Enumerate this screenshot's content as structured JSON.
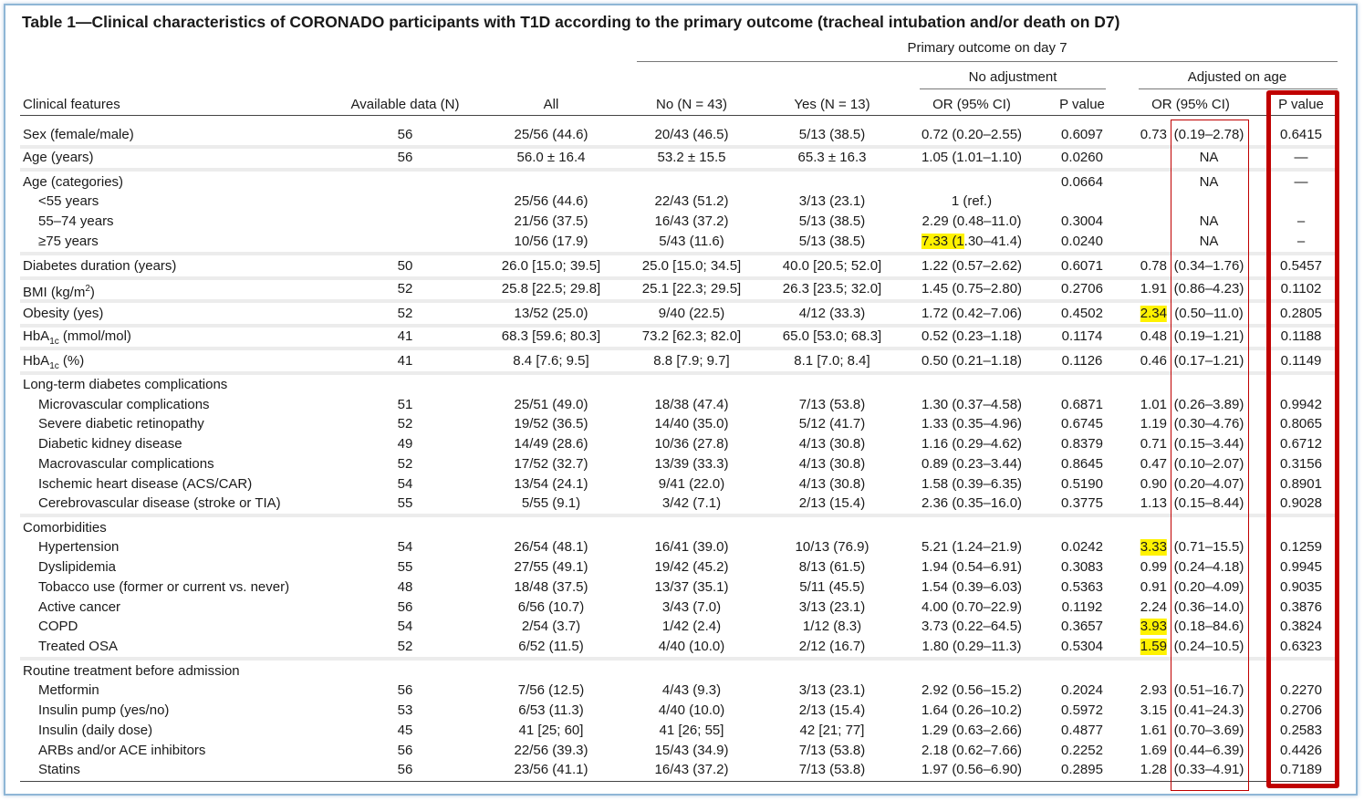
{
  "title": "Table 1—Clinical characteristics of CORONADO participants with T1D according to the primary outcome (tracheal intubation and/or death on D7)",
  "headers": {
    "primary_outcome": "Primary outcome on day 7",
    "no_adjustment": "No adjustment",
    "adjusted_on_age": "Adjusted on age",
    "clinical_features": "Clinical features",
    "available_data": "Available data (N)",
    "all": "All",
    "no": "No (N = 43)",
    "yes": "Yes (N = 13)",
    "or_ci_1": "OR (95% CI)",
    "p_value_1": "P value",
    "or_ci_2": "OR (95% CI)",
    "p_value_2": "P value"
  },
  "highlight_color": "#fff200",
  "annotation_color": "#c00000",
  "rows": [
    {
      "label": "Sex (female/male)",
      "indent": false,
      "n": "56",
      "all": "25/56 (44.6)",
      "no": "20/43 (46.5)",
      "yes": "5/13 (38.5)",
      "or1": "0.72 (0.20–2.55)",
      "p1": "0.6097",
      "or2a": "0.73",
      "or2b": "(0.19–2.78)",
      "p2": "0.6415"
    },
    {
      "label": "Age (years)",
      "indent": false,
      "n": "56",
      "all": "56.0 ± 16.4",
      "no": "53.2 ± 15.5",
      "yes": "65.3 ± 16.3",
      "or1": "1.05 (1.01–1.10)",
      "p1": "0.0260",
      "or2a": "",
      "or2b": "NA",
      "p2": "—"
    },
    {
      "label": "Age (categories)",
      "indent": false,
      "n": "",
      "all": "",
      "no": "",
      "yes": "",
      "or1": "",
      "p1": "0.0664",
      "or2a": "",
      "or2b": "NA",
      "p2": "—"
    },
    {
      "label": "<55 years",
      "indent": true,
      "n": "",
      "all": "25/56 (44.6)",
      "no": "22/43 (51.2)",
      "yes": "3/13 (23.1)",
      "or1": "1 (ref.)",
      "p1": "",
      "or2a": "",
      "or2b": "",
      "p2": ""
    },
    {
      "label": "55–74 years",
      "indent": true,
      "n": "",
      "all": "21/56 (37.5)",
      "no": "16/43 (37.2)",
      "yes": "5/13 (38.5)",
      "or1": "2.29 (0.48–11.0)",
      "p1": "0.3004",
      "or2a": "",
      "or2b": "NA",
      "p2": "–"
    },
    {
      "label": "≥75 years",
      "indent": true,
      "n": "",
      "all": "10/56 (17.9)",
      "no": "5/43 (11.6)",
      "yes": "5/13 (38.5)",
      "or1": "7.33 (1.30–41.4)",
      "p1": "0.0240",
      "or2a": "",
      "or2b": "NA",
      "p2": "–"
    },
    {
      "label": "Diabetes duration (years)",
      "indent": false,
      "n": "50",
      "all": "26.0 [15.0; 39.5]",
      "no": "25.0 [15.0; 34.5]",
      "yes": "40.0 [20.5; 52.0]",
      "or1": "1.22 (0.57–2.62)",
      "p1": "0.6071",
      "or2a": "0.78",
      "or2b": "(0.34–1.76)",
      "p2": "0.5457"
    },
    {
      "label": "BMI (kg/m²)",
      "indent": false,
      "n": "52",
      "all": "25.8 [22.5; 29.8]",
      "no": "25.1 [22.3; 29.5]",
      "yes": "26.3 [23.5; 32.0]",
      "or1": "1.45 (0.75–2.80)",
      "p1": "0.2706",
      "or2a": "1.91",
      "or2b": "(0.86–4.23)",
      "p2": "0.1102"
    },
    {
      "label": "Obesity (yes)",
      "indent": false,
      "n": "52",
      "all": "13/52 (25.0)",
      "no": "9/40 (22.5)",
      "yes": "4/12 (33.3)",
      "or1": "1.72 (0.42–7.06)",
      "p1": "0.4502",
      "or2a": "2.34",
      "or2b": "(0.50–11.0)",
      "p2": "0.2805"
    },
    {
      "label": "HbA1c (mmol/mol)",
      "indent": false,
      "n": "41",
      "all": "68.3 [59.6; 80.3]",
      "no": "73.2 [62.3; 82.0]",
      "yes": "65.0 [53.0; 68.3]",
      "or1": "0.52 (0.23–1.18)",
      "p1": "0.1174",
      "or2a": "0.48",
      "or2b": "(0.19–1.21)",
      "p2": "0.1188"
    },
    {
      "label": "HbA1c (%)",
      "indent": false,
      "n": "41",
      "all": "8.4 [7.6; 9.5]",
      "no": "8.8 [7.9; 9.7]",
      "yes": "8.1 [7.0; 8.4]",
      "or1": "0.50 (0.21–1.18)",
      "p1": "0.1126",
      "or2a": "0.46",
      "or2b": "(0.17–1.21)",
      "p2": "0.1149"
    },
    {
      "label": "Long-term diabetes complications",
      "indent": false,
      "n": "",
      "all": "",
      "no": "",
      "yes": "",
      "or1": "",
      "p1": "",
      "or2a": "",
      "or2b": "",
      "p2": ""
    },
    {
      "label": "Microvascular complications",
      "indent": true,
      "n": "51",
      "all": "25/51 (49.0)",
      "no": "18/38 (47.4)",
      "yes": "7/13 (53.8)",
      "or1": "1.30 (0.37–4.58)",
      "p1": "0.6871",
      "or2a": "1.01",
      "or2b": "(0.26–3.89)",
      "p2": "0.9942"
    },
    {
      "label": "Severe diabetic retinopathy",
      "indent": true,
      "n": "52",
      "all": "19/52 (36.5)",
      "no": "14/40 (35.0)",
      "yes": "5/12 (41.7)",
      "or1": "1.33 (0.35–4.96)",
      "p1": "0.6745",
      "or2a": "1.19",
      "or2b": "(0.30–4.76)",
      "p2": "0.8065"
    },
    {
      "label": "Diabetic kidney disease",
      "indent": true,
      "n": "49",
      "all": "14/49 (28.6)",
      "no": "10/36 (27.8)",
      "yes": "4/13 (30.8)",
      "or1": "1.16 (0.29–4.62)",
      "p1": "0.8379",
      "or2a": "0.71",
      "or2b": "(0.15–3.44)",
      "p2": "0.6712"
    },
    {
      "label": "Macrovascular complications",
      "indent": true,
      "n": "52",
      "all": "17/52 (32.7)",
      "no": "13/39 (33.3)",
      "yes": "4/13 (30.8)",
      "or1": "0.89 (0.23–3.44)",
      "p1": "0.8645",
      "or2a": "0.47",
      "or2b": "(0.10–2.07)",
      "p2": "0.3156"
    },
    {
      "label": "Ischemic heart disease (ACS/CAR)",
      "indent": true,
      "n": "54",
      "all": "13/54 (24.1)",
      "no": "9/41 (22.0)",
      "yes": "4/13 (30.8)",
      "or1": "1.58 (0.39–6.35)",
      "p1": "0.5190",
      "or2a": "0.90",
      "or2b": "(0.20–4.07)",
      "p2": "0.8901"
    },
    {
      "label": "Cerebrovascular disease (stroke or TIA)",
      "indent": true,
      "n": "55",
      "all": "5/55 (9.1)",
      "no": "3/42 (7.1)",
      "yes": "2/13 (15.4)",
      "or1": "2.36 (0.35–16.0)",
      "p1": "0.3775",
      "or2a": "1.13",
      "or2b": "(0.15–8.44)",
      "p2": "0.9028"
    },
    {
      "label": "Comorbidities",
      "indent": false,
      "n": "",
      "all": "",
      "no": "",
      "yes": "",
      "or1": "",
      "p1": "",
      "or2a": "",
      "or2b": "",
      "p2": ""
    },
    {
      "label": "Hypertension",
      "indent": true,
      "n": "54",
      "all": "26/54 (48.1)",
      "no": "16/41 (39.0)",
      "yes": "10/13 (76.9)",
      "or1": "5.21 (1.24–21.9)",
      "p1": "0.0242",
      "or2a": "3.33",
      "or2b": "(0.71–15.5)",
      "p2": "0.1259"
    },
    {
      "label": "Dyslipidemia",
      "indent": true,
      "n": "55",
      "all": "27/55 (49.1)",
      "no": "19/42 (45.2)",
      "yes": "8/13 (61.5)",
      "or1": "1.94 (0.54–6.91)",
      "p1": "0.3083",
      "or2a": "0.99",
      "or2b": "(0.24–4.18)",
      "p2": "0.9945"
    },
    {
      "label": "Tobacco use (former or current vs. never)",
      "indent": true,
      "n": "48",
      "all": "18/48 (37.5)",
      "no": "13/37 (35.1)",
      "yes": "5/11 (45.5)",
      "or1": "1.54 (0.39–6.03)",
      "p1": "0.5363",
      "or2a": "0.91",
      "or2b": "(0.20–4.09)",
      "p2": "0.9035"
    },
    {
      "label": "Active cancer",
      "indent": true,
      "n": "56",
      "all": "6/56 (10.7)",
      "no": "3/43 (7.0)",
      "yes": "3/13 (23.1)",
      "or1": "4.00 (0.70–22.9)",
      "p1": "0.1192",
      "or2a": "2.24",
      "or2b": "(0.36–14.0)",
      "p2": "0.3876"
    },
    {
      "label": "COPD",
      "indent": true,
      "n": "54",
      "all": "2/54 (3.7)",
      "no": "1/42 (2.4)",
      "yes": "1/12 (8.3)",
      "or1": "3.73 (0.22–64.5)",
      "p1": "0.3657",
      "or2a": "3.93",
      "or2b": "(0.18–84.6)",
      "p2": "0.3824"
    },
    {
      "label": "Treated OSA",
      "indent": true,
      "n": "52",
      "all": "6/52 (11.5)",
      "no": "4/40 (10.0)",
      "yes": "2/12 (16.7)",
      "or1": "1.80 (0.29–11.3)",
      "p1": "0.5304",
      "or2a": "1.59",
      "or2b": "(0.24–10.5)",
      "p2": "0.6323"
    },
    {
      "label": "Routine treatment before admission",
      "indent": false,
      "n": "",
      "all": "",
      "no": "",
      "yes": "",
      "or1": "",
      "p1": "",
      "or2a": "",
      "or2b": "",
      "p2": ""
    },
    {
      "label": "Metformin",
      "indent": true,
      "n": "56",
      "all": "7/56 (12.5)",
      "no": "4/43 (9.3)",
      "yes": "3/13 (23.1)",
      "or1": "2.92 (0.56–15.2)",
      "p1": "0.2024",
      "or2a": "2.93",
      "or2b": "(0.51–16.7)",
      "p2": "0.2270"
    },
    {
      "label": "Insulin pump (yes/no)",
      "indent": true,
      "n": "53",
      "all": "6/53 (11.3)",
      "no": "4/40 (10.0)",
      "yes": "2/13 (15.4)",
      "or1": "1.64 (0.26–10.2)",
      "p1": "0.5972",
      "or2a": "3.15",
      "or2b": "(0.41–24.3)",
      "p2": "0.2706"
    },
    {
      "label": "Insulin (daily dose)",
      "indent": true,
      "n": "45",
      "all": "41 [25; 60]",
      "no": "41 [26; 55]",
      "yes": "42 [21; 77]",
      "or1": "1.29 (0.63–2.66)",
      "p1": "0.4877",
      "or2a": "1.61",
      "or2b": "(0.70–3.69)",
      "p2": "0.2583"
    },
    {
      "label": "ARBs and/or ACE inhibitors",
      "indent": true,
      "n": "56",
      "all": "22/56 (39.3)",
      "no": "15/43 (34.9)",
      "yes": "7/13 (53.8)",
      "or1": "2.18 (0.62–7.66)",
      "p1": "0.2252",
      "or2a": "1.69",
      "or2b": "(0.44–6.39)",
      "p2": "0.4426"
    },
    {
      "label": "Statins",
      "indent": true,
      "n": "56",
      "all": "23/56 (41.1)",
      "no": "16/43 (37.2)",
      "yes": "7/13 (53.8)",
      "or1": "1.97 (0.56–6.90)",
      "p1": "0.2895",
      "or2a": "1.28",
      "or2b": "(0.33–4.91)",
      "p2": "0.7189"
    }
  ]
}
